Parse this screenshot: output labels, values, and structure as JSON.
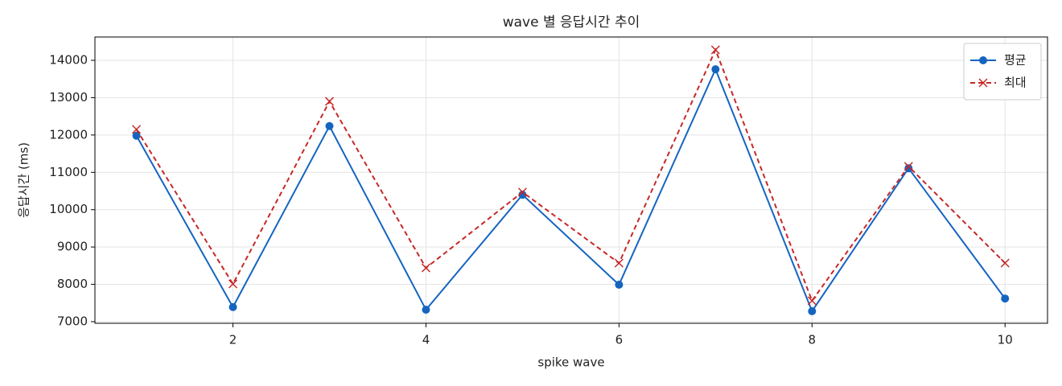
{
  "chart_data": {
    "type": "line",
    "title": "wave 별 응답시간 추이",
    "x_label": "spike wave",
    "y_label": "응답시간 (ms)",
    "x": [
      1,
      2,
      3,
      4,
      5,
      6,
      7,
      8,
      9,
      10
    ],
    "series": [
      {
        "name": "평균",
        "color": "#1565c0",
        "marker": "o",
        "dashed": false,
        "values": [
          11980,
          7390,
          12240,
          7320,
          10400,
          7990,
          13760,
          7280,
          11110,
          7620
        ]
      },
      {
        "name": "최대",
        "color": "#c62828",
        "marker": "x",
        "dashed": true,
        "values": [
          12150,
          8010,
          12900,
          8440,
          10470,
          8570,
          14280,
          7560,
          11160,
          8570
        ]
      }
    ],
    "xlim": [
      0.57,
      10.44
    ],
    "ylim": [
      6957,
      14625
    ],
    "xticks": [
      2,
      4,
      6,
      8,
      10
    ],
    "yticks": [
      7000,
      8000,
      9000,
      10000,
      11000,
      12000,
      13000,
      14000
    ],
    "grid": true,
    "legend": "upper right"
  }
}
